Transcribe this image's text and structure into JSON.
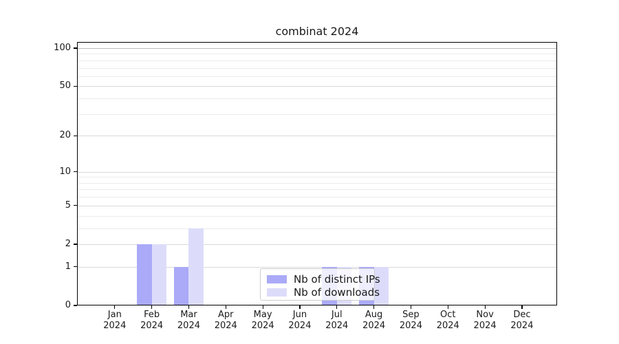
{
  "chart_data": {
    "type": "bar",
    "title": "combinat 2024",
    "categories": [
      "Jan",
      "Feb",
      "Mar",
      "Apr",
      "May",
      "Jun",
      "Jul",
      "Aug",
      "Sep",
      "Oct",
      "Nov",
      "Dec"
    ],
    "x_tick_year": "2024",
    "series": [
      {
        "name": "Nb of distinct IPs",
        "color": "#aaaaf8",
        "values": [
          0,
          2,
          1,
          0,
          0,
          0,
          1,
          1,
          0,
          0,
          0,
          0
        ]
      },
      {
        "name": "Nb of downloads",
        "color": "#dcdcfa",
        "values": [
          0,
          2,
          3,
          0,
          0,
          0,
          1,
          1,
          0,
          0,
          0,
          0
        ]
      }
    ],
    "y_scale": "log10(1+v)",
    "yticks": [
      0,
      1,
      2,
      5,
      10,
      20,
      50,
      100
    ],
    "minor_grid_values": [
      3,
      4,
      6,
      7,
      8,
      9,
      30,
      40,
      60,
      70,
      80,
      90
    ],
    "ylim": [
      0,
      110
    ],
    "grid": true,
    "legend_position": "lower center",
    "colors": {
      "grid_major": "#d9d9d9",
      "grid_minor": "#ececec",
      "grid_top": "#bdbdbd",
      "axis": "#000000",
      "text": "#1a1a1a",
      "legend_border": "#cccccc"
    }
  }
}
